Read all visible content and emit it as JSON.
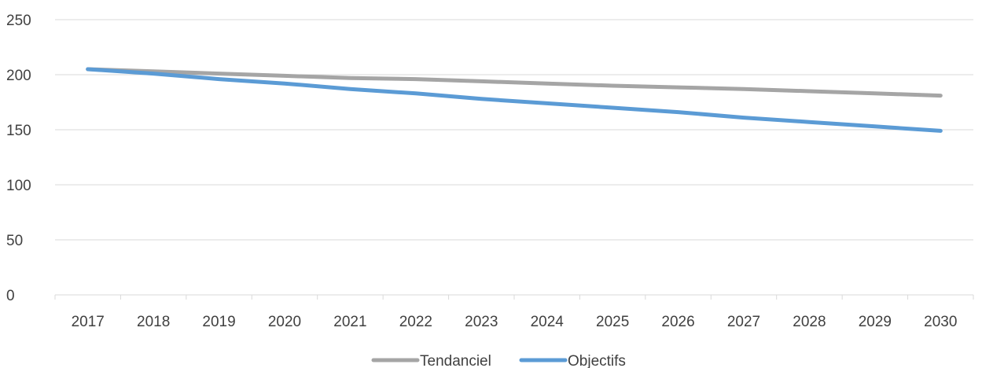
{
  "chart_data": {
    "type": "line",
    "title": "",
    "xlabel": "",
    "ylabel": "",
    "x": [
      "2017",
      "2018",
      "2019",
      "2020",
      "2021",
      "2022",
      "2023",
      "2024",
      "2025",
      "2026",
      "2027",
      "2028",
      "2029",
      "2030"
    ],
    "ylim": [
      0,
      250
    ],
    "yticks": [
      "0",
      "50",
      "100",
      "150",
      "200",
      "250"
    ],
    "grid": true,
    "legend_position": "bottom",
    "series": [
      {
        "name": "Tendanciel",
        "color": "#a5a5a5",
        "values": [
          205,
          203,
          201,
          199,
          197,
          196,
          194,
          192,
          190,
          188.5,
          187,
          185,
          183,
          181
        ]
      },
      {
        "name": "Objectifs",
        "color": "#5b9bd5",
        "values": [
          205,
          201,
          196,
          192,
          187,
          183,
          178,
          174,
          170,
          166,
          161,
          157,
          153,
          149
        ]
      }
    ]
  }
}
